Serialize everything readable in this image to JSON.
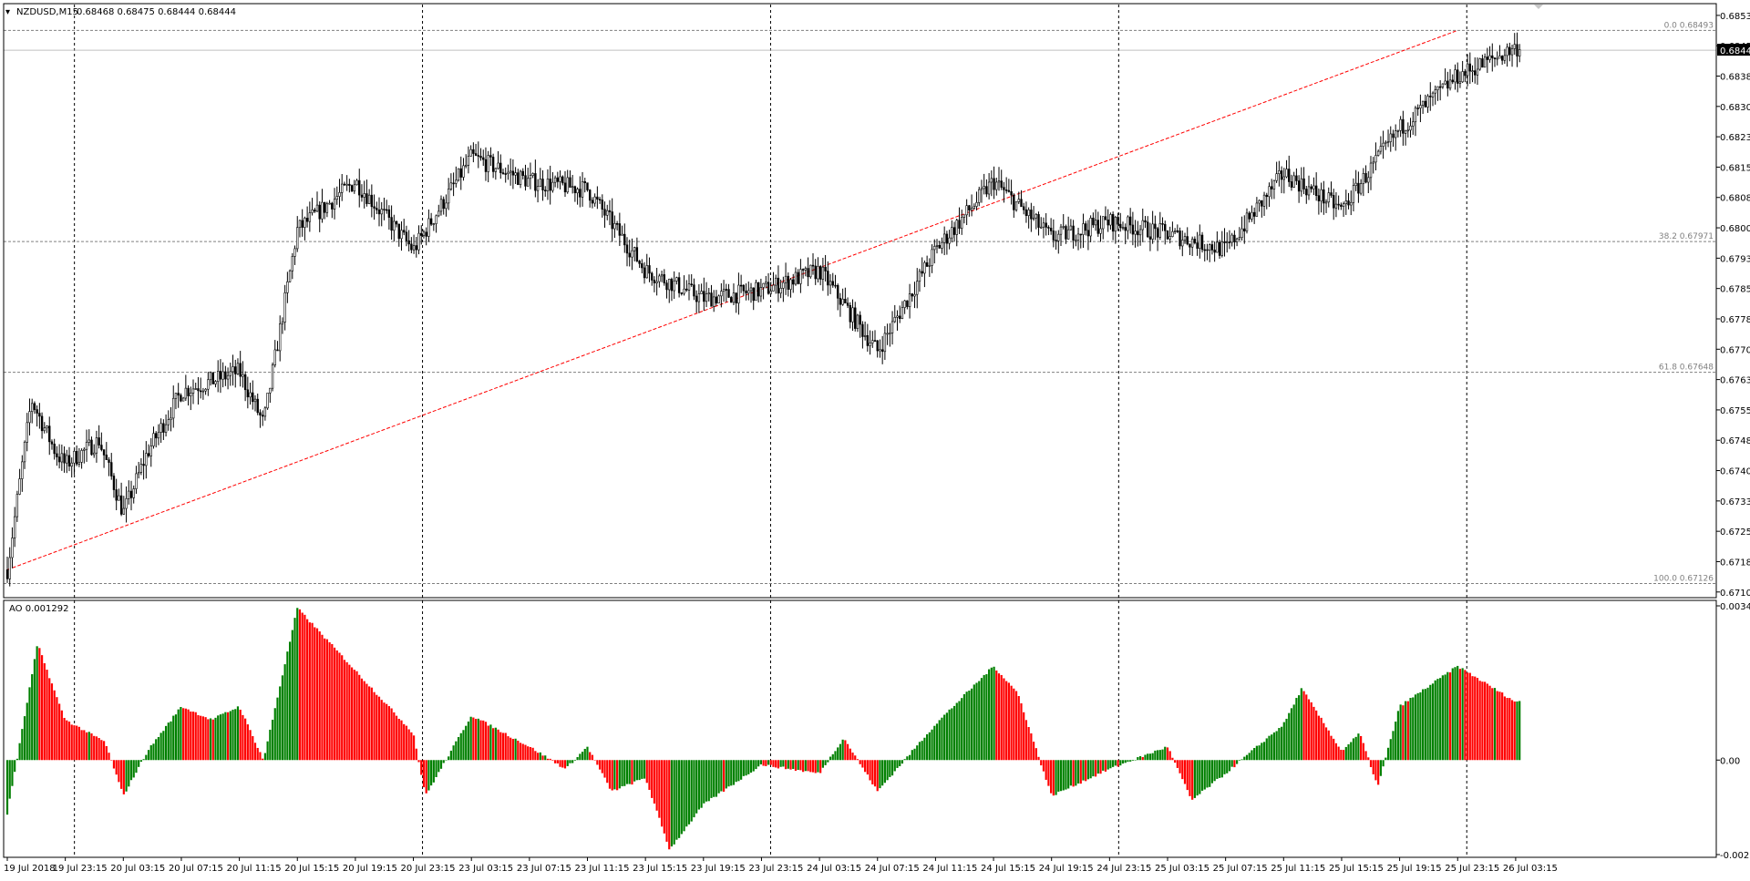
{
  "header": {
    "symbol_text": "NZDUSD,M15",
    "ohlc_text": "0.68468 0.68475 0.68444 0.68444",
    "indicator_text": "AO 0.001292"
  },
  "colors": {
    "background": "#ffffff",
    "candle": "#000000",
    "ao_up": "#008000",
    "ao_down": "#ff0000",
    "trendline": "#ff0000",
    "grid": "#000000",
    "fib_text": "#808080",
    "price_tag_bg": "#000000"
  },
  "chart_data": [
    {
      "type": "candlestick",
      "symbol": "NZDUSD",
      "timeframe": "M15",
      "y_ticks": [
        "0.68530",
        "0.68455",
        "0.68380",
        "0.68305",
        "0.68230",
        "0.68155",
        "0.68080",
        "0.68005",
        "0.67930",
        "0.67855",
        "0.67780",
        "0.67705",
        "0.67630",
        "0.67555",
        "0.67480",
        "0.67405",
        "0.67330",
        "0.67255",
        "0.67180",
        "0.67105"
      ],
      "ylim": [
        0.671,
        0.6855
      ],
      "x_ticks": [
        "19 Jul 2018",
        "19 Jul 23:15",
        "20 Jul 03:15",
        "20 Jul 07:15",
        "20 Jul 11:15",
        "20 Jul 15:15",
        "20 Jul 19:15",
        "20 Jul 23:15",
        "23 Jul 03:15",
        "23 Jul 07:15",
        "23 Jul 11:15",
        "23 Jul 15:15",
        "23 Jul 19:15",
        "23 Jul 23:15",
        "24 Jul 03:15",
        "24 Jul 07:15",
        "24 Jul 11:15",
        "24 Jul 15:15",
        "24 Jul 19:15",
        "24 Jul 23:15",
        "25 Jul 03:15",
        "25 Jul 07:15",
        "25 Jul 11:15",
        "25 Jul 15:15",
        "25 Jul 19:15",
        "25 Jul 23:15",
        "26 Jul 03:15"
      ],
      "vertical_grid_after_tick": [
        "19 Jul 23:15",
        "20 Jul 23:15",
        "23 Jul 23:15",
        "24 Jul 23:15",
        "25 Jul 23:15"
      ],
      "fib_levels": [
        {
          "label": "0.0 0.68493",
          "price": 0.68493
        },
        {
          "label": "38.2 0.67971",
          "price": 0.67971
        },
        {
          "label": "61.8 0.67648",
          "price": 0.67648
        },
        {
          "label": "100.0 0.67126",
          "price": 0.67126
        }
      ],
      "current_price": {
        "label": "0.68444",
        "price": 0.68444
      },
      "trendline": [
        {
          "x": "19 Jul 2018",
          "price": 0.6716
        },
        {
          "x": "25 Jul 23:15",
          "price": 0.68493
        }
      ],
      "path_points": [
        [
          "19 Jul 2018",
          0.6716
        ],
        [
          "19 Jul 2018 +4",
          0.6758
        ],
        [
          "19 Jul 2018 +8",
          0.6745
        ],
        [
          "19 Jul 23:15",
          0.6742
        ],
        [
          "20 Jul 03:15 -4",
          0.6748
        ],
        [
          "20 Jul 03:15",
          0.673
        ],
        [
          "20 Jul 03:15 +4",
          0.6745
        ],
        [
          "20 Jul 07:15",
          0.676
        ],
        [
          "20 Jul 11:15",
          0.6765
        ],
        [
          "20 Jul 11:15 +4",
          0.6752
        ],
        [
          "20 Jul 15:15",
          0.68
        ],
        [
          "20 Jul 19:15",
          0.6812
        ],
        [
          "20 Jul 23:15",
          0.6795
        ],
        [
          "23 Jul 03:15",
          0.6818
        ],
        [
          "23 Jul 07:15",
          0.6812
        ],
        [
          "23 Jul 11:15",
          0.681
        ],
        [
          "23 Jul 15:15",
          0.679
        ],
        [
          "23 Jul 19:15",
          0.6783
        ],
        [
          "23 Jul 23:15",
          0.6785
        ],
        [
          "24 Jul 03:15",
          0.679
        ],
        [
          "24 Jul 07:15",
          0.677
        ],
        [
          "24 Jul 11:15",
          0.6795
        ],
        [
          "24 Jul 15:15",
          0.6812
        ],
        [
          "24 Jul 19:15",
          0.6798
        ],
        [
          "24 Jul 23:15",
          0.6802
        ],
        [
          "25 Jul 03:15",
          0.6799
        ],
        [
          "25 Jul 07:15",
          0.6795
        ],
        [
          "25 Jul 11:15",
          0.6814
        ],
        [
          "25 Jul 15:15",
          0.6805
        ],
        [
          "25 Jul 19:15",
          0.6825
        ],
        [
          "25 Jul 23:15",
          0.6838
        ],
        [
          "26 Jul 03:15",
          0.6845
        ]
      ]
    },
    {
      "type": "bar",
      "name": "Awesome Oscillator",
      "value_label": "AO 0.001292",
      "y_ticks": [
        "0.003446",
        "0.00",
        "-0.002112"
      ],
      "ylim": [
        -0.002112,
        0.003446
      ],
      "color_rule": "green if higher than previous bar, red otherwise",
      "path_points": [
        [
          "19 Jul 2018",
          -0.0012
        ],
        [
          "19 Jul 2018 +5",
          0.0026
        ],
        [
          "19 Jul 2018 +9",
          0.0011
        ],
        [
          "19 Jul 23:15",
          0.0009
        ],
        [
          "20 Jul 03:15 -3",
          0.0004
        ],
        [
          "20 Jul 03:15",
          -0.0008
        ],
        [
          "20 Jul 03:15 +4",
          0.0002
        ],
        [
          "20 Jul 07:15",
          0.0012
        ],
        [
          "20 Jul 07:15 +5",
          0.0009
        ],
        [
          "20 Jul 11:15",
          0.0012
        ],
        [
          "20 Jul 11:15 +4",
          0.0
        ],
        [
          "20 Jul 15:15",
          0.0034
        ],
        [
          "20 Jul 19:15",
          0.002
        ],
        [
          "20 Jul 23:15",
          0.0006
        ],
        [
          "20 Jul 23:15 +2",
          -0.0008
        ],
        [
          "23 Jul 03:15",
          0.001
        ],
        [
          "23 Jul 07:15",
          0.0003
        ],
        [
          "23 Jul 07:15 +6",
          -0.0002
        ],
        [
          "23 Jul 11:15",
          0.0003
        ],
        [
          "23 Jul 11:15 +4",
          -0.0007
        ],
        [
          "23 Jul 15:15",
          -0.0004
        ],
        [
          "23 Jul 15:15 +4",
          -0.002
        ],
        [
          "23 Jul 19:15",
          -0.001
        ],
        [
          "23 Jul 23:15",
          -0.0001
        ],
        [
          "24 Jul 03:15",
          -0.0003
        ],
        [
          "24 Jul 03:15 +4",
          0.0005
        ],
        [
          "24 Jul 07:15",
          -0.0007
        ],
        [
          "24 Jul 11:15",
          0.0008
        ],
        [
          "24 Jul 15:15",
          0.0021
        ],
        [
          "24 Jul 15:15 +4",
          0.0015
        ],
        [
          "24 Jul 19:15",
          -0.0008
        ],
        [
          "24 Jul 23:15",
          -0.0002
        ],
        [
          "25 Jul 03:15",
          0.0003
        ],
        [
          "25 Jul 03:15 +4",
          -0.0009
        ],
        [
          "25 Jul 07:15",
          -0.0003
        ],
        [
          "25 Jul 11:15",
          0.0008
        ],
        [
          "25 Jul 11:15 +3",
          0.0016
        ],
        [
          "25 Jul 15:15",
          0.0002
        ],
        [
          "25 Jul 15:15 +3",
          0.0006
        ],
        [
          "25 Jul 15:15 +6",
          -0.0006
        ],
        [
          "25 Jul 19:15",
          0.0012
        ],
        [
          "25 Jul 23:15",
          0.0021
        ],
        [
          "26 Jul 03:15",
          0.0013
        ]
      ]
    }
  ]
}
